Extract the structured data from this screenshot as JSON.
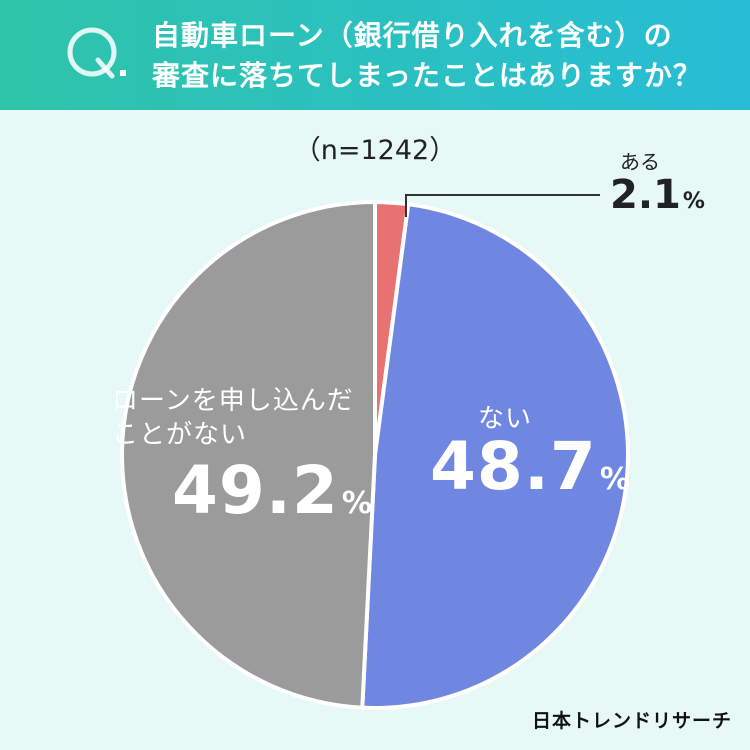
{
  "header": {
    "q_letter": "Q.",
    "question_line1": "自動車ローン（銀行借り入れを含む）の",
    "question_line2": "審査に落ちてしまったことはありますか？"
  },
  "sample_size": "（n=1242）",
  "brand": "日本トレンドリサーチ",
  "chart_data": {
    "type": "pie",
    "title": "自動車ローン（銀行借り入れを含む）の審査に落ちてしまったことはありますか？",
    "subtitle": "（n=1242）",
    "unit": "%",
    "slices": [
      {
        "label": "ある",
        "value": 2.1,
        "color": "#e87272"
      },
      {
        "label": "ない",
        "value": 48.7,
        "color": "#7087e2"
      },
      {
        "label": "ローンを申し込んだことがない",
        "value": 49.2,
        "color": "#9b9b9b"
      }
    ]
  },
  "labels": {
    "aru_cat": "ある",
    "aru_val": "2.1",
    "nai_cat": "ない",
    "nai_val": "48.7",
    "never_line1": "ローンを申し込んだ",
    "never_line2": "ことがない",
    "never_val": "49.2",
    "pct": "%"
  }
}
